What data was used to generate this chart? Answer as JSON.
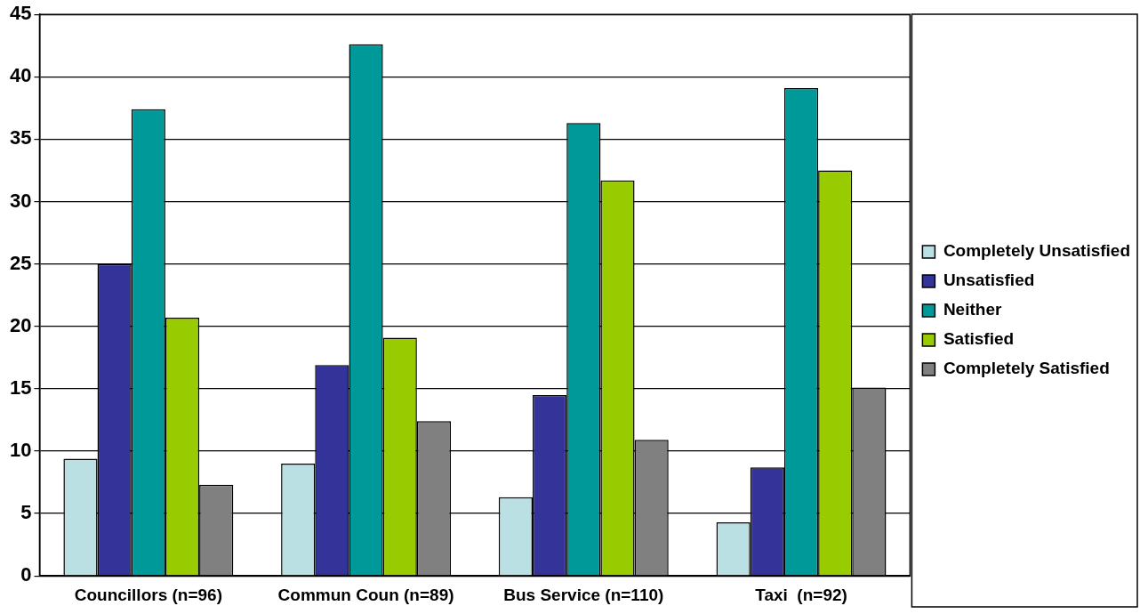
{
  "chart_data": {
    "type": "bar",
    "categories": [
      "Councillors (n=96)",
      "Commun Coun (n=89)",
      "Bus Service (n=110)",
      "Taxi  (n=92)"
    ],
    "series": [
      {
        "name": "Completely Unsatisfied",
        "color": "#bbe0e3",
        "values": [
          9.4,
          9.0,
          6.3,
          4.3
        ]
      },
      {
        "name": "Unsatisfied",
        "color": "#333399",
        "values": [
          25.0,
          16.9,
          14.5,
          8.7
        ]
      },
      {
        "name": "Neither",
        "color": "#009999",
        "values": [
          37.4,
          42.6,
          36.3,
          39.1
        ]
      },
      {
        "name": "Satisfied",
        "color": "#99cc00",
        "values": [
          20.7,
          19.1,
          31.7,
          32.5
        ]
      },
      {
        "name": "Completely Satisfied",
        "color": "#808080",
        "values": [
          7.3,
          12.4,
          10.9,
          15.1
        ]
      }
    ],
    "ylim": [
      0,
      45
    ],
    "yticks": [
      0,
      5,
      10,
      15,
      20,
      25,
      30,
      35,
      40,
      45
    ],
    "grid": "y",
    "legend": "right"
  }
}
